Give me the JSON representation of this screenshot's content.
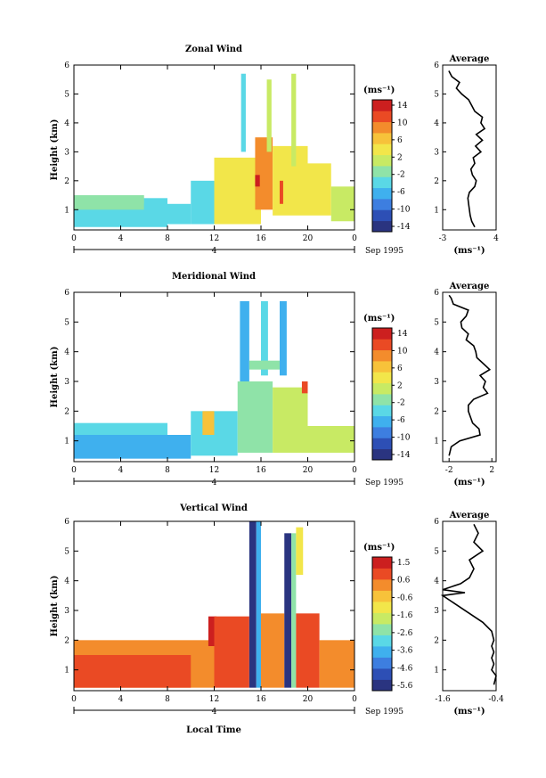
{
  "chart_data": [
    {
      "type": "heatmap",
      "title": "Zonal Wind",
      "ylabel": "Height (km)",
      "xlabel": "",
      "x_ticks": [
        "0",
        "4",
        "8",
        "12",
        "16",
        "20",
        "0"
      ],
      "y_ticks": [
        "1",
        "2",
        "3",
        "4",
        "5",
        "6"
      ],
      "xlim": [
        0,
        24
      ],
      "ylim": [
        0.3,
        6.0
      ],
      "date_day": "4",
      "date_label": "Sep 1995",
      "colorbar": {
        "unit": "(ms⁻¹)",
        "labels": [
          "14",
          "10",
          "6",
          "2",
          "-2",
          "-6",
          "-10",
          "-14"
        ],
        "range": [
          -16,
          16
        ]
      },
      "profile": {
        "title": "Average",
        "xlabel": "(ms⁻¹)",
        "x_ticks": [
          "-3",
          "4"
        ],
        "xlim": [
          -3,
          4
        ],
        "y_ticks": [
          "1",
          "2",
          "3",
          "4",
          "5",
          "6"
        ],
        "points": [
          [
            1.2,
            0.4
          ],
          [
            0.8,
            0.6
          ],
          [
            0.6,
            0.8
          ],
          [
            0.5,
            1.0
          ],
          [
            0.4,
            1.2
          ],
          [
            0.3,
            1.4
          ],
          [
            0.5,
            1.6
          ],
          [
            1.2,
            1.8
          ],
          [
            1.4,
            2.0
          ],
          [
            0.9,
            2.2
          ],
          [
            0.7,
            2.4
          ],
          [
            1.2,
            2.6
          ],
          [
            1.0,
            2.8
          ],
          [
            2.0,
            3.0
          ],
          [
            1.3,
            3.2
          ],
          [
            2.2,
            3.4
          ],
          [
            1.4,
            3.6
          ],
          [
            2.5,
            3.8
          ],
          [
            2.0,
            4.0
          ],
          [
            2.2,
            4.2
          ],
          [
            1.2,
            4.4
          ],
          [
            0.8,
            4.6
          ],
          [
            0.4,
            4.8
          ],
          [
            -0.5,
            5.0
          ],
          [
            -1.2,
            5.2
          ],
          [
            -0.8,
            5.4
          ],
          [
            -1.8,
            5.6
          ],
          [
            -2.2,
            5.8
          ]
        ]
      },
      "field": [
        {
          "x": [
            0,
            8
          ],
          "y": [
            0.4,
            1.4
          ],
          "v": -4
        },
        {
          "x": [
            0,
            6
          ],
          "y": [
            1.0,
            1.5
          ],
          "v": -2
        },
        {
          "x": [
            6,
            10
          ],
          "y": [
            0.5,
            1.2
          ],
          "v": -5
        },
        {
          "x": [
            10,
            12
          ],
          "y": [
            0.5,
            2.0
          ],
          "v": -3
        },
        {
          "x": [
            12,
            16
          ],
          "y": [
            0.5,
            2.8
          ],
          "v": 3
        },
        {
          "x": [
            15.5,
            17
          ],
          "y": [
            1.0,
            3.5
          ],
          "v": 8
        },
        {
          "x": [
            17,
            20
          ],
          "y": [
            0.8,
            3.2
          ],
          "v": 5
        },
        {
          "x": [
            20,
            22
          ],
          "y": [
            0.8,
            2.6
          ],
          "v": 3
        },
        {
          "x": [
            22,
            24
          ],
          "y": [
            0.6,
            1.8
          ],
          "v": 1
        },
        {
          "x": [
            14.3,
            14.7
          ],
          "y": [
            3.0,
            5.7
          ],
          "v": -3
        },
        {
          "x": [
            16.5,
            16.9
          ],
          "y": [
            3.0,
            5.5
          ],
          "v": 2
        },
        {
          "x": [
            18.6,
            19.0
          ],
          "y": [
            2.5,
            5.7
          ],
          "v": 0
        },
        {
          "x": [
            15.5,
            15.9
          ],
          "y": [
            1.8,
            2.2
          ],
          "v": 14
        },
        {
          "x": [
            17.6,
            17.9
          ],
          "y": [
            1.2,
            2.0
          ],
          "v": 12
        }
      ]
    },
    {
      "type": "heatmap",
      "title": "Meridional Wind",
      "ylabel": "Height (km)",
      "xlabel": "",
      "x_ticks": [
        "0",
        "4",
        "8",
        "12",
        "16",
        "20",
        "0"
      ],
      "y_ticks": [
        "1",
        "2",
        "3",
        "4",
        "5",
        "6"
      ],
      "xlim": [
        0,
        24
      ],
      "ylim": [
        0.3,
        6.0
      ],
      "date_day": "4",
      "date_label": "Sep 1995",
      "colorbar": {
        "unit": "(ms⁻¹)",
        "labels": [
          "14",
          "10",
          "6",
          "2",
          "-2",
          "-6",
          "-10",
          "-14"
        ],
        "range": [
          -16,
          16
        ]
      },
      "profile": {
        "title": "Average",
        "xlabel": "(ms⁻¹)",
        "x_ticks": [
          "-2",
          "2"
        ],
        "xlim": [
          -2.6,
          2.4
        ],
        "y_ticks": [
          "1",
          "2",
          "3",
          "4",
          "5",
          "6"
        ],
        "points": [
          [
            -2.0,
            0.5
          ],
          [
            -1.8,
            0.8
          ],
          [
            -1.0,
            1.0
          ],
          [
            0.9,
            1.2
          ],
          [
            0.8,
            1.4
          ],
          [
            0.2,
            1.6
          ],
          [
            0.0,
            1.8
          ],
          [
            -0.2,
            2.0
          ],
          [
            -0.2,
            2.2
          ],
          [
            0.3,
            2.4
          ],
          [
            1.6,
            2.6
          ],
          [
            1.2,
            2.8
          ],
          [
            1.4,
            3.0
          ],
          [
            0.9,
            3.2
          ],
          [
            1.8,
            3.4
          ],
          [
            1.2,
            3.6
          ],
          [
            0.6,
            3.8
          ],
          [
            0.5,
            4.0
          ],
          [
            0.3,
            4.2
          ],
          [
            -0.4,
            4.4
          ],
          [
            -0.2,
            4.6
          ],
          [
            -0.8,
            4.8
          ],
          [
            -0.9,
            5.0
          ],
          [
            -0.4,
            5.2
          ],
          [
            -0.2,
            5.4
          ],
          [
            -1.6,
            5.6
          ],
          [
            -1.8,
            5.8
          ],
          [
            -2.0,
            5.9
          ]
        ]
      },
      "field": [
        {
          "x": [
            0,
            10
          ],
          "y": [
            0.4,
            1.2
          ],
          "v": -6
        },
        {
          "x": [
            0,
            8
          ],
          "y": [
            1.2,
            1.6
          ],
          "v": -3
        },
        {
          "x": [
            10,
            14
          ],
          "y": [
            0.5,
            2.0
          ],
          "v": -4
        },
        {
          "x": [
            11,
            12
          ],
          "y": [
            1.2,
            2.0
          ],
          "v": 6
        },
        {
          "x": [
            14,
            17
          ],
          "y": [
            0.6,
            3.0
          ],
          "v": -2
        },
        {
          "x": [
            17,
            20
          ],
          "y": [
            0.6,
            2.8
          ],
          "v": 1
        },
        {
          "x": [
            20,
            24
          ],
          "y": [
            0.6,
            1.5
          ],
          "v": 2
        },
        {
          "x": [
            14.2,
            15.0
          ],
          "y": [
            3.0,
            5.7
          ],
          "v": -8
        },
        {
          "x": [
            16.0,
            16.6
          ],
          "y": [
            3.2,
            5.7
          ],
          "v": -4
        },
        {
          "x": [
            17.6,
            18.2
          ],
          "y": [
            3.2,
            5.7
          ],
          "v": -6
        },
        {
          "x": [
            15.0,
            17.6
          ],
          "y": [
            3.4,
            3.7
          ],
          "v": -1
        },
        {
          "x": [
            19.5,
            20.0
          ],
          "y": [
            2.6,
            3.0
          ],
          "v": 12
        }
      ]
    },
    {
      "type": "heatmap",
      "title": "Vertical Wind",
      "ylabel": "Height (km)",
      "xlabel": "Local Time",
      "x_ticks": [
        "0",
        "4",
        "8",
        "12",
        "16",
        "20",
        "0"
      ],
      "y_ticks": [
        "1",
        "2",
        "3",
        "4",
        "5",
        "6"
      ],
      "xlim": [
        0,
        24
      ],
      "ylim": [
        0.3,
        6.0
      ],
      "date_day": "4",
      "date_label": "Sep 1995",
      "colorbar": {
        "unit": "(ms⁻¹)",
        "labels": [
          "1.5",
          "0.6",
          "-0.6",
          "-1.6",
          "-2.6",
          "-3.6",
          "-4.6",
          "-5.6"
        ],
        "range": [
          -6.1,
          2.0
        ]
      },
      "profile": {
        "title": "Average",
        "xlabel": "(ms⁻¹)",
        "x_ticks": [
          "-1.6",
          "-0.4"
        ],
        "xlim": [
          -1.6,
          -0.4
        ],
        "y_ticks": [
          "1",
          "2",
          "3",
          "4",
          "5",
          "6"
        ],
        "points": [
          [
            -0.45,
            0.5
          ],
          [
            -0.4,
            0.8
          ],
          [
            -0.5,
            1.0
          ],
          [
            -0.45,
            1.2
          ],
          [
            -0.5,
            1.4
          ],
          [
            -0.45,
            1.6
          ],
          [
            -0.5,
            1.8
          ],
          [
            -0.45,
            2.0
          ],
          [
            -0.5,
            2.3
          ],
          [
            -0.7,
            2.6
          ],
          [
            -1.0,
            2.9
          ],
          [
            -1.3,
            3.2
          ],
          [
            -1.6,
            3.5
          ],
          [
            -1.1,
            3.6
          ],
          [
            -1.6,
            3.7
          ],
          [
            -1.2,
            3.9
          ],
          [
            -1.0,
            4.1
          ],
          [
            -0.9,
            4.4
          ],
          [
            -1.0,
            4.7
          ],
          [
            -0.7,
            5.0
          ],
          [
            -0.9,
            5.3
          ],
          [
            -0.8,
            5.6
          ],
          [
            -0.9,
            5.9
          ]
        ]
      },
      "field": [
        {
          "x": [
            0,
            12
          ],
          "y": [
            0.4,
            2.0
          ],
          "v": 0.6
        },
        {
          "x": [
            0,
            10
          ],
          "y": [
            0.4,
            1.5
          ],
          "v": 0.9
        },
        {
          "x": [
            11.5,
            12.2
          ],
          "y": [
            1.8,
            2.8
          ],
          "v": 1.5
        },
        {
          "x": [
            12,
            15
          ],
          "y": [
            0.4,
            2.8
          ],
          "v": 0.7
        },
        {
          "x": [
            15.0,
            15.6
          ],
          "y": [
            0.4,
            6.0
          ],
          "v": -5.6
        },
        {
          "x": [
            15.6,
            16.0
          ],
          "y": [
            0.4,
            6.0
          ],
          "v": -3.6
        },
        {
          "x": [
            16,
            18
          ],
          "y": [
            0.4,
            2.9
          ],
          "v": 0.6
        },
        {
          "x": [
            18.0,
            18.6
          ],
          "y": [
            0.4,
            5.6
          ],
          "v": -5.6
        },
        {
          "x": [
            18.6,
            19.0
          ],
          "y": [
            0.4,
            5.6
          ],
          "v": -2.6
        },
        {
          "x": [
            19,
            21
          ],
          "y": [
            0.4,
            2.9
          ],
          "v": 0.8
        },
        {
          "x": [
            21,
            24
          ],
          "y": [
            0.4,
            2.0
          ],
          "v": 0.6
        },
        {
          "x": [
            19.0,
            19.6
          ],
          "y": [
            4.2,
            5.8
          ],
          "v": -1.0
        }
      ]
    }
  ]
}
